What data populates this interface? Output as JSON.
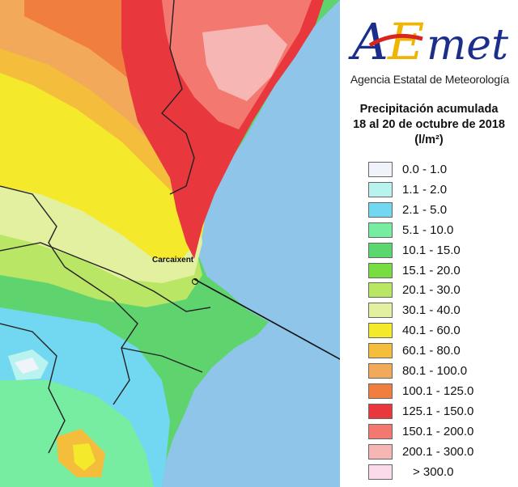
{
  "brand": {
    "logo_text": "AEmet",
    "agency": "Agencia Estatal de Meteorología"
  },
  "title": {
    "line1": "Precipitación acumulada",
    "line2": "18 al 20 de octubre de 2018",
    "units": "(l/m²)"
  },
  "legend": [
    {
      "label": "0.0 - 1.0",
      "color": "#f1f3fb"
    },
    {
      "label": "1.1 - 2.0",
      "color": "#b9f3ef"
    },
    {
      "label": "2.1 - 5.0",
      "color": "#72d7f0"
    },
    {
      "label": "5.1 - 10.0",
      "color": "#77eda1"
    },
    {
      "label": "10.1 - 15.0",
      "color": "#5ad86e"
    },
    {
      "label": "15.1 - 20.0",
      "color": "#77dd41"
    },
    {
      "label": "20.1 - 30.0",
      "color": "#b9e665"
    },
    {
      "label": "30.1 - 40.0",
      "color": "#e3f0a0"
    },
    {
      "label": "40.1 - 60.0",
      "color": "#f4e92b"
    },
    {
      "label": "60.1 - 80.0",
      "color": "#f4bd3b"
    },
    {
      "label": "80.1 - 100.0",
      "color": "#f3a95a"
    },
    {
      "label": "100.1 - 125.0",
      "color": "#ef7e3f"
    },
    {
      "label": "125.1 - 150.0",
      "color": "#e8383e"
    },
    {
      "label": "150.1 - 200.0",
      "color": "#f3786f"
    },
    {
      "label": "200.1 - 300.0",
      "color": "#f6b6b4"
    },
    {
      "label": "> 300.0",
      "color": "#fbdbe9"
    }
  ],
  "map": {
    "city_label": "Carcaixent",
    "sea_color": "#8ec5e8"
  }
}
